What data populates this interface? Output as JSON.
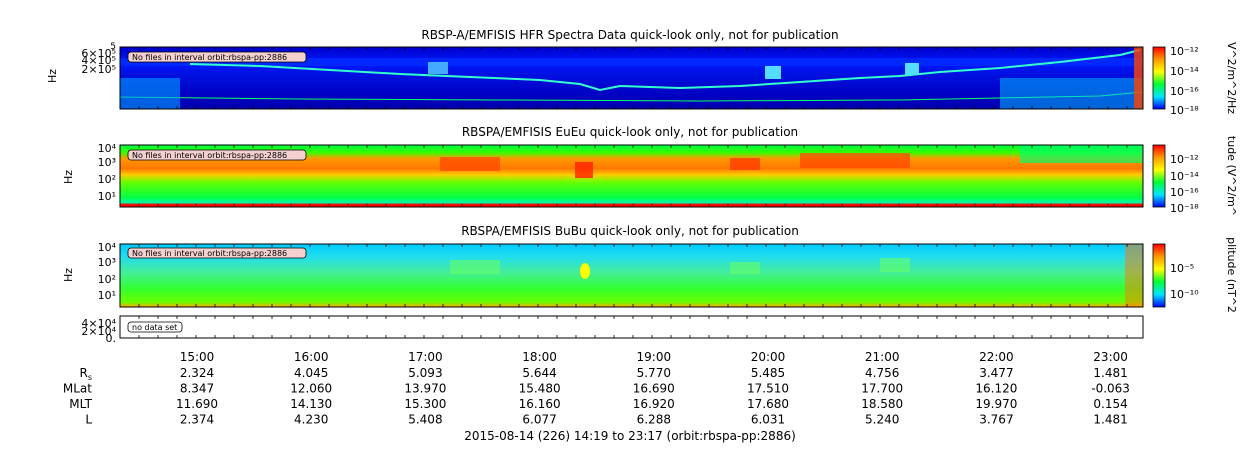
{
  "footer": "2015-08-14 (226) 14:19 to 23:17 (orbit:rbspa-pp:2886)",
  "x_ticks": [
    "15:00",
    "16:00",
    "17:00",
    "18:00",
    "19:00",
    "20:00",
    "21:00",
    "22:00",
    "23:00"
  ],
  "ephemeris": [
    {
      "label": "R",
      "sub": "s",
      "values": [
        "2.324",
        "4.045",
        "5.093",
        "5.644",
        "5.770",
        "5.485",
        "4.756",
        "3.477",
        "1.481"
      ]
    },
    {
      "label": "MLat",
      "sub": "",
      "values": [
        "8.347",
        "12.060",
        "13.970",
        "15.480",
        "16.690",
        "17.510",
        "17.700",
        "16.120",
        "-0.063"
      ]
    },
    {
      "label": "MLT",
      "sub": "",
      "values": [
        "11.690",
        "14.130",
        "15.300",
        "16.160",
        "16.920",
        "17.680",
        "18.580",
        "19.970",
        "0.154"
      ]
    },
    {
      "label": "L",
      "sub": "",
      "values": [
        "2.374",
        "4.230",
        "5.408",
        "6.077",
        "6.288",
        "6.031",
        "5.240",
        "3.767",
        "1.481"
      ]
    }
  ],
  "colors": {
    "dark_blue": "#0000c8",
    "blue": "#0000ff",
    "cyan": "#00e6ff",
    "green": "#00ff33",
    "yellow": "#ffff00",
    "orange": "#ff9900",
    "red": "#ff0000"
  },
  "chart_data": [
    {
      "type": "heatmap",
      "title": "RBSP-A/EMFISIS  HFR Spectra Data quick-look only, not for publication",
      "ylabel": "Hz",
      "y_ticks": [
        "6×10⁵",
        "4×10⁵",
        "2×10⁵"
      ],
      "y_top_tick": "5",
      "colorbar_label": "V^2/m^2/Hz",
      "colorbar_ticks": [
        "10⁻¹²",
        "10⁻¹⁴",
        "10⁻¹⁶",
        "10⁻¹⁸"
      ],
      "annotation": "No files in interval orbit:rbspa-pp:2886"
    },
    {
      "type": "heatmap",
      "title": "RBSPA/EMFISIS  EuEu quick-look only, not for publication",
      "ylabel": "Hz",
      "y_ticks": [
        "10⁴",
        "10³",
        "10²",
        "10¹"
      ],
      "colorbar_label": "tude (V^2/m^",
      "colorbar_ticks": [
        "10⁻¹²",
        "10⁻¹⁴",
        "10⁻¹⁶",
        "10⁻¹⁸"
      ],
      "annotation": "No files in interval orbit:rbspa-pp:2886"
    },
    {
      "type": "heatmap",
      "title": "RBSPA/EMFISIS  BuBu quick-look only, not for publication",
      "ylabel": "Hz",
      "y_ticks": [
        "10⁴",
        "10³",
        "10²",
        "10¹"
      ],
      "colorbar_label": "plitude (nT^2",
      "colorbar_ticks": [
        "10⁻⁵",
        "10⁻¹⁰"
      ],
      "annotation": "No files in interval orbit:rbspa-pp:2886"
    },
    {
      "type": "line",
      "title": "",
      "ylabel": "",
      "y_ticks": [
        "4×10⁴",
        "2×10⁴",
        "0."
      ],
      "annotation": "no data set"
    }
  ]
}
